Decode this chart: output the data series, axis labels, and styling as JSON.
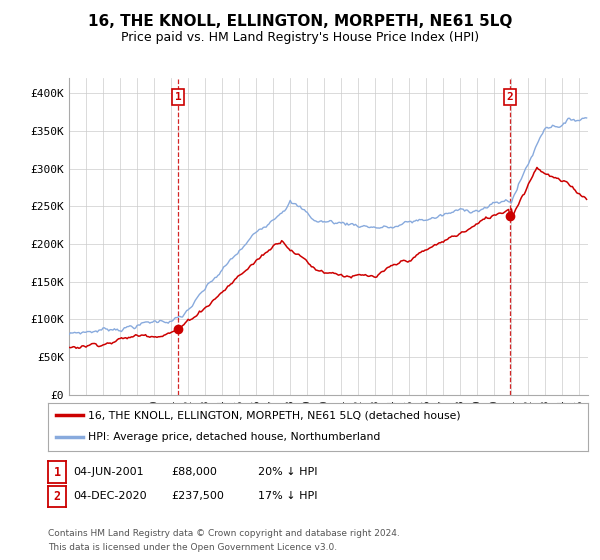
{
  "title": "16, THE KNOLL, ELLINGTON, MORPETH, NE61 5LQ",
  "subtitle": "Price paid vs. HM Land Registry's House Price Index (HPI)",
  "title_fontsize": 11,
  "subtitle_fontsize": 9,
  "ylabel_ticks": [
    "£0",
    "£50K",
    "£100K",
    "£150K",
    "£200K",
    "£250K",
    "£300K",
    "£350K",
    "£400K"
  ],
  "ytick_values": [
    0,
    50000,
    100000,
    150000,
    200000,
    250000,
    300000,
    350000,
    400000
  ],
  "ylim": [
    0,
    420000
  ],
  "xlim_start": 1995.0,
  "xlim_end": 2025.5,
  "transaction1_x": 2001.417,
  "transaction1_price": 88000,
  "transaction2_x": 2020.917,
  "transaction2_price": 237500,
  "legend_line1": "16, THE KNOLL, ELLINGTON, MORPETH, NE61 5LQ (detached house)",
  "legend_line2": "HPI: Average price, detached house, Northumberland",
  "footer_line1": "Contains HM Land Registry data © Crown copyright and database right 2024.",
  "footer_line2": "This data is licensed under the Open Government Licence v3.0.",
  "info1_label": "1",
  "info1_date": "04-JUN-2001",
  "info1_price": "£88,000",
  "info1_hpi": "20% ↓ HPI",
  "info2_label": "2",
  "info2_date": "04-DEC-2020",
  "info2_price": "£237,500",
  "info2_hpi": "17% ↓ HPI",
  "line_color_price": "#cc0000",
  "line_color_hpi": "#88aadd",
  "background_color": "#ffffff",
  "grid_color": "#cccccc"
}
